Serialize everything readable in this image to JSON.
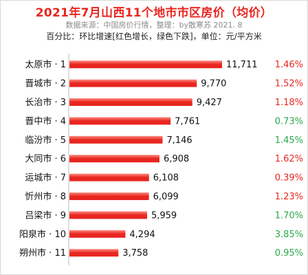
{
  "header": {
    "title": "2021年7月山西11个地市市区房价（均价）",
    "source": "数据来源：中国房价行情，整理：by散寒苏 2021. 8",
    "note": "百分比：环比增速[红色增长，绿色下跌]，单位：元/平方米"
  },
  "colors": {
    "bar": "#e8261f",
    "bar_highlight": "#ff8a80",
    "increase": "#e8261f",
    "decrease": "#2aa84a",
    "title": "#e8261f"
  },
  "chart_data": {
    "type": "bar",
    "orientation": "horizontal",
    "categories": [
      "太原市 · 1",
      "晋城市 · 2",
      "长治市 · 3",
      "晋中市 · 4",
      "临汾市 · 5",
      "大同市 · 6",
      "运城市 · 7",
      "忻州市 · 8",
      "吕梁市 · 9",
      "阳泉市 · 10",
      "朔州市 · 11"
    ],
    "values": [
      11711,
      9770,
      9427,
      7761,
      7146,
      6908,
      6108,
      6099,
      5959,
      4294,
      3758
    ],
    "value_labels": [
      "11,711",
      "9,770",
      "9,427",
      "7,761",
      "7,146",
      "6,908",
      "6,108",
      "6,099",
      "5,959",
      "4,294",
      "3,758"
    ],
    "mom_change": [
      "1.46%",
      "1.52%",
      "1.18%",
      "0.73%",
      "1.45%",
      "1.62%",
      "0.39%",
      "1.23%",
      "1.70%",
      "3.85%",
      "0.95%"
    ],
    "mom_change_color": [
      "increase",
      "increase",
      "increase",
      "decrease",
      "decrease",
      "increase",
      "increase",
      "increase",
      "decrease",
      "decrease",
      "decrease"
    ],
    "xlim": [
      0,
      11711
    ],
    "grid": false,
    "legend": "none"
  }
}
